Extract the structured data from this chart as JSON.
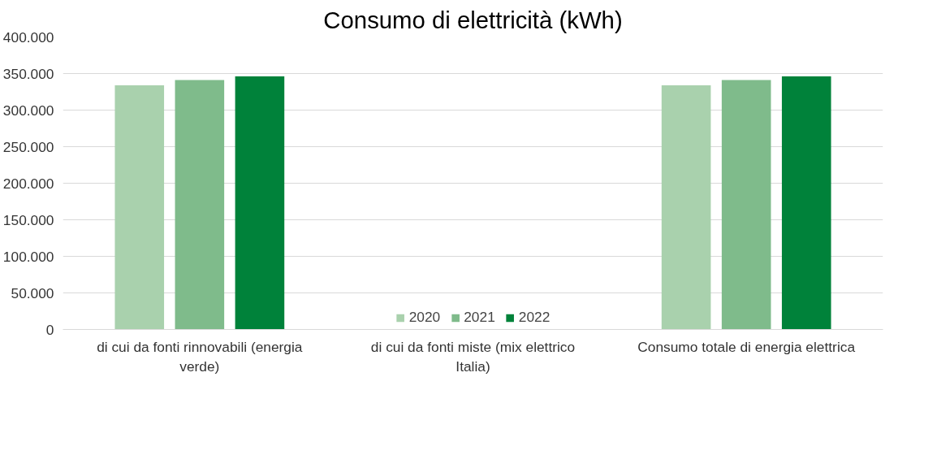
{
  "chart_data": {
    "type": "bar",
    "title": "Consumo di elettricità (kWh)",
    "categories": [
      "di cui da fonti rinnovabili (energia verde)",
      "di cui da fonti miste (mix elettrico Italia)",
      "Consumo totale di energia elettrica"
    ],
    "series": [
      {
        "name": "2020",
        "color": "#a9d1ad",
        "values": [
          334000,
          null,
          334000
        ]
      },
      {
        "name": "2021",
        "color": "#7fbb8b",
        "values": [
          341000,
          null,
          341000
        ]
      },
      {
        "name": "2022",
        "color": "#00823a",
        "values": [
          346000,
          null,
          346000
        ]
      }
    ],
    "ylim": [
      0,
      400000
    ],
    "yticks": [
      0,
      {
        "value": 50000,
        "label": "50.000"
      },
      {
        "value": 100000,
        "label": "100.000"
      },
      {
        "value": 150000,
        "label": "150.000"
      },
      {
        "value": 200000,
        "label": "200.000"
      },
      {
        "value": 250000,
        "label": "250.000"
      },
      {
        "value": 300000,
        "label": "300.000"
      },
      {
        "value": 350000,
        "label": "350.000"
      },
      {
        "value": 400000,
        "label": "400.000"
      }
    ],
    "grid": "y",
    "legend": "bottom"
  }
}
